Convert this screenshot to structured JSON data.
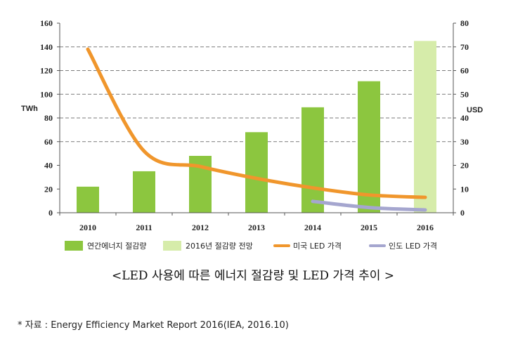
{
  "chart_data": {
    "type": "bar+line",
    "categories": [
      "2010",
      "2011",
      "2012",
      "2013",
      "2014",
      "2015",
      "2016"
    ],
    "left_axis": {
      "label": "TWh",
      "ylim": [
        0,
        160
      ],
      "ticks": [
        0,
        20,
        40,
        60,
        80,
        100,
        120,
        140,
        160
      ]
    },
    "right_axis": {
      "label": "USD",
      "ylim": [
        0,
        80
      ],
      "ticks": [
        0,
        10,
        20,
        30,
        40,
        50,
        60,
        70,
        80
      ]
    },
    "gridlines": [
      60,
      80,
      100,
      120,
      140
    ],
    "series": [
      {
        "name": "연간에너지 절감량",
        "type": "bar",
        "axis": "left",
        "color": "#8cc63f",
        "values": [
          22,
          35,
          48,
          68,
          89,
          111,
          null
        ]
      },
      {
        "name": "2016년 절감량 전망",
        "type": "bar",
        "axis": "left",
        "color": "#d6ecaa",
        "values": [
          null,
          null,
          null,
          null,
          null,
          null,
          145
        ]
      },
      {
        "name": "미국 LED 가격",
        "type": "line",
        "axis": "right",
        "color": "#f0962c",
        "values": [
          69,
          26,
          19.5,
          14.5,
          10.5,
          7.5,
          6.5
        ]
      },
      {
        "name": "인도 LED 가격",
        "type": "line",
        "axis": "right",
        "color": "#a5a6cf",
        "values": [
          null,
          null,
          null,
          null,
          4.8,
          2.2,
          1.2
        ]
      }
    ]
  },
  "caption": "<LED 사용에 따른 에너지 절감량 및 LED 가격 추이 >",
  "source": "* 자료 : Energy Efficiency Market Report 2016(IEA, 2016.10)"
}
